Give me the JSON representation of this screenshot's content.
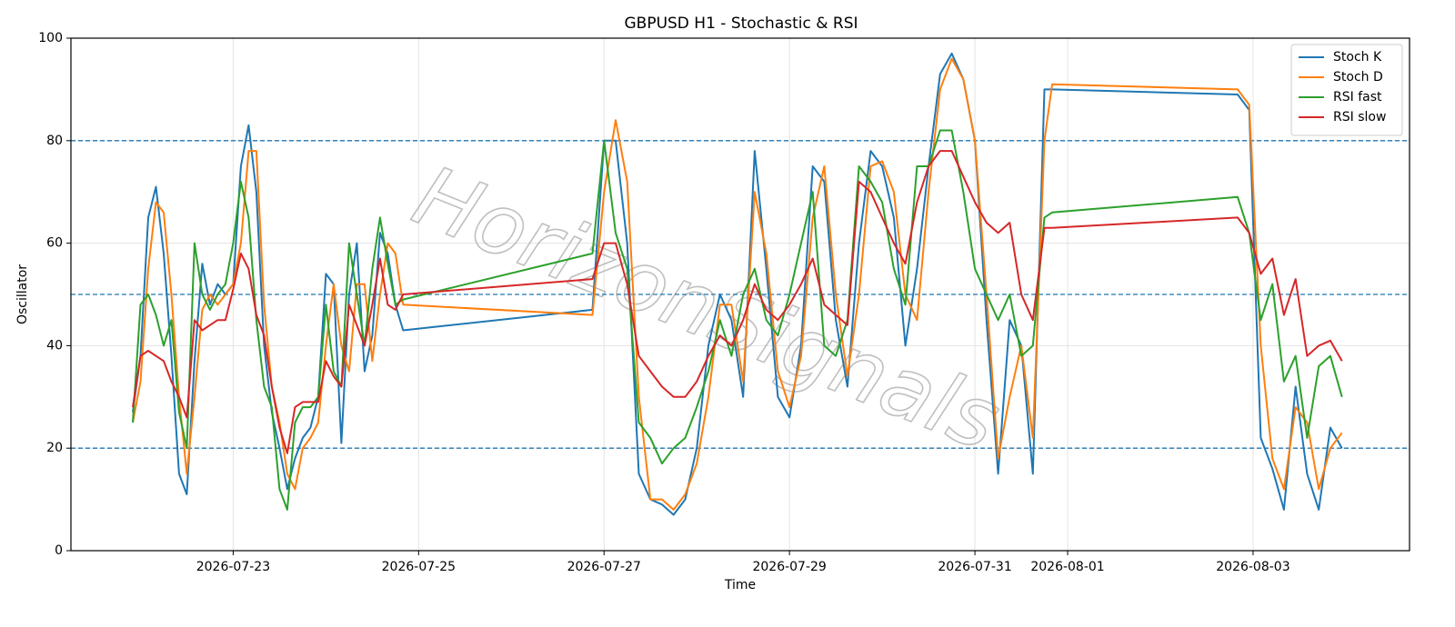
{
  "chart_data": {
    "type": "line",
    "title": "GBPUSD H1 - Stochastic & RSI",
    "x_label": "Time",
    "y_label": "Oscillator",
    "watermark": "HorizonSignals",
    "x": [
      "2026-07-21 22:00",
      "2026-07-22 00:00",
      "2026-07-22 02:00",
      "2026-07-22 04:00",
      "2026-07-22 06:00",
      "2026-07-22 08:00",
      "2026-07-22 10:00",
      "2026-07-22 12:00",
      "2026-07-22 14:00",
      "2026-07-22 16:00",
      "2026-07-22 18:00",
      "2026-07-22 20:00",
      "2026-07-22 22:00",
      "2026-07-23 00:00",
      "2026-07-23 02:00",
      "2026-07-23 04:00",
      "2026-07-23 06:00",
      "2026-07-23 08:00",
      "2026-07-23 10:00",
      "2026-07-23 12:00",
      "2026-07-23 14:00",
      "2026-07-23 16:00",
      "2026-07-23 18:00",
      "2026-07-23 20:00",
      "2026-07-23 22:00",
      "2026-07-24 00:00",
      "2026-07-24 02:00",
      "2026-07-24 04:00",
      "2026-07-24 06:00",
      "2026-07-24 08:00",
      "2026-07-24 10:00",
      "2026-07-24 12:00",
      "2026-07-24 14:00",
      "2026-07-24 16:00",
      "2026-07-24 18:00",
      "2026-07-24 20:00",
      "2026-07-26 21:00",
      "2026-07-27 00:00",
      "2026-07-27 03:00",
      "2026-07-27 06:00",
      "2026-07-27 09:00",
      "2026-07-27 12:00",
      "2026-07-27 15:00",
      "2026-07-27 18:00",
      "2026-07-27 21:00",
      "2026-07-28 00:00",
      "2026-07-28 03:00",
      "2026-07-28 06:00",
      "2026-07-28 09:00",
      "2026-07-28 12:00",
      "2026-07-28 15:00",
      "2026-07-28 18:00",
      "2026-07-28 21:00",
      "2026-07-29 00:00",
      "2026-07-29 03:00",
      "2026-07-29 06:00",
      "2026-07-29 09:00",
      "2026-07-29 12:00",
      "2026-07-29 15:00",
      "2026-07-29 18:00",
      "2026-07-29 21:00",
      "2026-07-30 00:00",
      "2026-07-30 03:00",
      "2026-07-30 06:00",
      "2026-07-30 09:00",
      "2026-07-30 12:00",
      "2026-07-30 15:00",
      "2026-07-30 18:00",
      "2026-07-30 21:00",
      "2026-07-31 00:00",
      "2026-07-31 03:00",
      "2026-07-31 06:00",
      "2026-07-31 09:00",
      "2026-07-31 12:00",
      "2026-07-31 15:00",
      "2026-07-31 18:00",
      "2026-07-31 20:00",
      "2026-08-02 20:00",
      "2026-08-02 23:00",
      "2026-08-03 02:00",
      "2026-08-03 05:00",
      "2026-08-03 08:00",
      "2026-08-03 11:00",
      "2026-08-03 14:00",
      "2026-08-03 17:00",
      "2026-08-03 20:00",
      "2026-08-03 23:00"
    ],
    "series": [
      {
        "name": "Stoch K",
        "color": "#1f77b4",
        "values": [
          27,
          38,
          65,
          71,
          58,
          38,
          15,
          11,
          37,
          56,
          48,
          52,
          50,
          52,
          75,
          83,
          70,
          40,
          27,
          20,
          12,
          18,
          22,
          24,
          30,
          54,
          52,
          21,
          50,
          60,
          35,
          42,
          62,
          58,
          48,
          43,
          47,
          80,
          80,
          60,
          15,
          10,
          9,
          7,
          10,
          20,
          40,
          50,
          45,
          30,
          78,
          55,
          30,
          26,
          40,
          75,
          72,
          45,
          32,
          60,
          78,
          75,
          65,
          40,
          55,
          75,
          93,
          97,
          92,
          80,
          45,
          15,
          45,
          40,
          15,
          90,
          90,
          89,
          86,
          22,
          16,
          8,
          32,
          15,
          8,
          24,
          20
        ]
      },
      {
        "name": "Stoch D",
        "color": "#ff7f0e",
        "values": [
          25,
          33,
          55,
          68,
          66,
          50,
          30,
          15,
          30,
          47,
          50,
          48,
          50,
          52,
          60,
          78,
          78,
          48,
          32,
          25,
          15,
          12,
          20,
          22,
          25,
          40,
          52,
          40,
          35,
          52,
          52,
          37,
          50,
          60,
          58,
          48,
          46,
          70,
          84,
          72,
          30,
          10,
          10,
          8,
          11,
          17,
          30,
          48,
          48,
          33,
          70,
          58,
          35,
          28,
          38,
          65,
          75,
          50,
          34,
          50,
          75,
          76,
          70,
          50,
          45,
          70,
          90,
          96,
          92,
          80,
          50,
          18,
          30,
          40,
          22,
          80,
          91,
          90,
          87,
          40,
          18,
          12,
          28,
          25,
          12,
          20,
          23
        ]
      },
      {
        "name": "RSI fast",
        "color": "#2ca02c",
        "values": [
          25,
          48,
          50,
          46,
          40,
          45,
          27,
          20,
          60,
          50,
          47,
          50,
          52,
          60,
          72,
          65,
          45,
          32,
          28,
          12,
          8,
          25,
          28,
          28,
          30,
          48,
          35,
          32,
          60,
          50,
          40,
          55,
          65,
          56,
          48,
          49,
          58,
          80,
          62,
          55,
          25,
          22,
          17,
          20,
          22,
          28,
          35,
          45,
          38,
          50,
          55,
          45,
          42,
          50,
          60,
          70,
          40,
          38,
          45,
          75,
          72,
          68,
          55,
          48,
          75,
          75,
          82,
          82,
          70,
          55,
          50,
          45,
          50,
          38,
          40,
          65,
          66,
          69,
          62,
          45,
          52,
          33,
          38,
          22,
          36,
          38,
          30
        ]
      },
      {
        "name": "RSI slow",
        "color": "#d62728",
        "values": [
          28,
          38,
          39,
          38,
          37,
          33,
          30,
          26,
          45,
          43,
          44,
          45,
          45,
          51,
          58,
          55,
          46,
          42,
          32,
          24,
          19,
          28,
          29,
          29,
          29,
          37,
          34,
          32,
          48,
          44,
          40,
          48,
          57,
          48,
          47,
          50,
          53,
          60,
          60,
          52,
          38,
          35,
          32,
          30,
          30,
          33,
          38,
          42,
          40,
          45,
          52,
          47,
          45,
          48,
          52,
          57,
          48,
          46,
          44,
          72,
          70,
          65,
          60,
          56,
          68,
          75,
          78,
          78,
          73,
          68,
          64,
          62,
          64,
          50,
          45,
          63,
          63,
          65,
          62,
          54,
          57,
          46,
          53,
          38,
          40,
          41,
          37
        ]
      }
    ],
    "xlim": [
      "2026-07-21 06:00",
      "2026-08-04 16:30"
    ],
    "xticks": [
      "2026-07-23",
      "2026-07-25",
      "2026-07-27",
      "2026-07-29",
      "2026-07-31",
      "2026-08-01",
      "2026-08-03"
    ],
    "ylim": [
      0,
      100
    ],
    "yticks": [
      0,
      20,
      40,
      60,
      80,
      100
    ],
    "grid": true,
    "hlines": [
      {
        "value": 80,
        "color": "#1f77b4"
      },
      {
        "value": 50,
        "color": "#1f77b4"
      },
      {
        "value": 20,
        "color": "#1f77b4"
      }
    ],
    "legend": "upper right"
  }
}
